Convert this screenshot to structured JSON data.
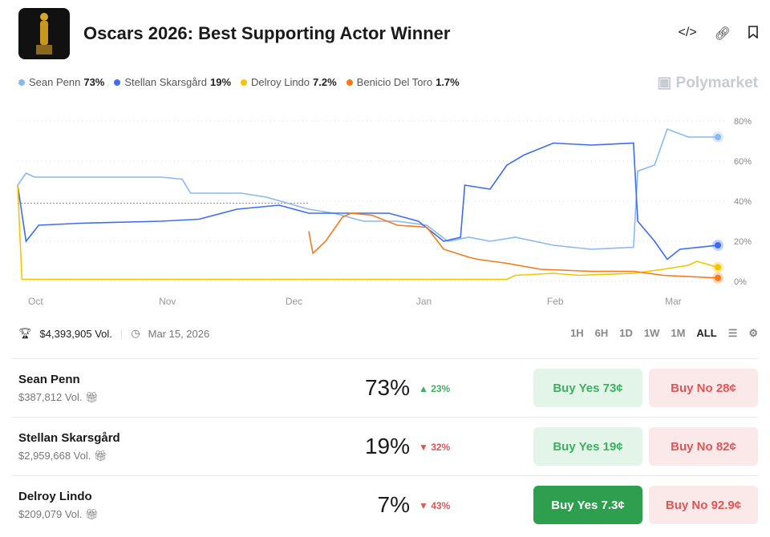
{
  "header": {
    "title": "Oscars 2026: Best Supporting Actor Winner",
    "icons": [
      "code-icon",
      "link-icon",
      "bookmark-icon"
    ]
  },
  "brand": "Polymarket",
  "legend": [
    {
      "name": "Sean Penn",
      "value": "73%",
      "color": "#8ab8f0"
    },
    {
      "name": "Stellan Skarsgård",
      "value": "19%",
      "color": "#3d6cf0"
    },
    {
      "name": "Delroy Lindo",
      "value": "7.2%",
      "color": "#f5c400"
    },
    {
      "name": "Benicio Del Toro",
      "value": "1.7%",
      "color": "#f57a1a"
    }
  ],
  "meta": {
    "volume": "$4,393,905 Vol.",
    "date": "Mar 15, 2026"
  },
  "ranges": [
    "1H",
    "6H",
    "1D",
    "1W",
    "1M",
    "ALL"
  ],
  "chart_data": {
    "type": "line",
    "x_ticks": [
      "Oct",
      "Nov",
      "Dec",
      "Jan",
      "Feb",
      "Mar"
    ],
    "y_ticks": [
      "0%",
      "20%",
      "40%",
      "60%",
      "80%"
    ],
    "ylim": [
      0,
      80
    ],
    "xlim": [
      "2025-09-27",
      "2026-03-12"
    ],
    "grid": true,
    "series": [
      {
        "name": "Sean Penn",
        "color": "#8ab8f0",
        "points": [
          [
            "2025-09-27",
            48
          ],
          [
            "2025-09-29",
            54
          ],
          [
            "2025-10-01",
            52
          ],
          [
            "2025-10-31",
            52
          ],
          [
            "2025-11-05",
            51
          ],
          [
            "2025-11-07",
            44
          ],
          [
            "2025-11-19",
            44
          ],
          [
            "2025-11-25",
            42
          ],
          [
            "2025-12-05",
            36
          ],
          [
            "2025-12-11",
            34
          ],
          [
            "2025-12-18",
            30
          ],
          [
            "2025-12-26",
            30
          ],
          [
            "2026-01-02",
            28
          ],
          [
            "2026-01-07",
            20
          ],
          [
            "2026-01-12",
            22
          ],
          [
            "2026-01-17",
            20
          ],
          [
            "2026-01-23",
            22
          ],
          [
            "2026-02-01",
            18
          ],
          [
            "2026-02-10",
            16
          ],
          [
            "2026-02-20",
            17
          ],
          [
            "2026-02-21",
            55
          ],
          [
            "2026-02-25",
            58
          ],
          [
            "2026-02-28",
            76
          ],
          [
            "2026-03-05",
            72
          ],
          [
            "2026-03-12",
            72
          ]
        ]
      },
      {
        "name": "Stellan Skarsgård",
        "color": "#3d6cf0",
        "points": [
          [
            "2025-09-27",
            48
          ],
          [
            "2025-09-29",
            20
          ],
          [
            "2025-10-02",
            28
          ],
          [
            "2025-10-12",
            29
          ],
          [
            "2025-10-31",
            30
          ],
          [
            "2025-11-09",
            31
          ],
          [
            "2025-11-18",
            36
          ],
          [
            "2025-11-28",
            38
          ],
          [
            "2025-12-05",
            34
          ],
          [
            "2025-12-15",
            34
          ],
          [
            "2025-12-24",
            34
          ],
          [
            "2025-12-31",
            30
          ],
          [
            "2026-01-06",
            20
          ],
          [
            "2026-01-10",
            22
          ],
          [
            "2026-01-11",
            48
          ],
          [
            "2026-01-17",
            46
          ],
          [
            "2026-01-21",
            58
          ],
          [
            "2026-01-25",
            63
          ],
          [
            "2026-02-01",
            69
          ],
          [
            "2026-02-10",
            68
          ],
          [
            "2026-02-20",
            69
          ],
          [
            "2026-02-21",
            30
          ],
          [
            "2026-02-25",
            20
          ],
          [
            "2026-02-28",
            11
          ],
          [
            "2026-03-03",
            16
          ],
          [
            "2026-03-12",
            18
          ]
        ]
      },
      {
        "name": "Delroy Lindo",
        "color": "#f5c400",
        "points": [
          [
            "2025-09-27",
            48
          ],
          [
            "2025-09-28",
            1
          ],
          [
            "2025-10-31",
            1
          ],
          [
            "2025-12-05",
            1
          ],
          [
            "2026-01-21",
            1
          ],
          [
            "2026-01-23",
            3
          ],
          [
            "2026-02-01",
            4
          ],
          [
            "2026-02-07",
            3
          ],
          [
            "2026-02-20",
            4
          ],
          [
            "2026-02-27",
            6
          ],
          [
            "2026-03-05",
            8
          ],
          [
            "2026-03-07",
            10
          ],
          [
            "2026-03-12",
            7
          ]
        ]
      },
      {
        "name": "Benicio Del Toro",
        "color": "#f57a1a",
        "points": [
          [
            "2025-12-05",
            25
          ],
          [
            "2025-12-06",
            14
          ],
          [
            "2025-12-09",
            20
          ],
          [
            "2025-12-13",
            32
          ],
          [
            "2025-12-15",
            34
          ],
          [
            "2025-12-20",
            33
          ],
          [
            "2025-12-26",
            28
          ],
          [
            "2026-01-02",
            27
          ],
          [
            "2026-01-06",
            16
          ],
          [
            "2026-01-12",
            12
          ],
          [
            "2026-01-14",
            11
          ],
          [
            "2026-01-21",
            9
          ],
          [
            "2026-01-29",
            6
          ],
          [
            "2026-02-10",
            5
          ],
          [
            "2026-02-20",
            5
          ],
          [
            "2026-02-27",
            3
          ],
          [
            "2026-03-12",
            1.7
          ]
        ]
      }
    ]
  },
  "outcomes": [
    {
      "name": "Sean Penn",
      "volume": "$387,812 Vol.",
      "pct": "73%",
      "change": "▲ 23%",
      "up": true,
      "yes": "Buy Yes",
      "yes_price": "73¢",
      "no": "Buy No",
      "no_price": "28¢"
    },
    {
      "name": "Stellan Skarsgård",
      "volume": "$2,959,668 Vol.",
      "pct": "19%",
      "change": "▼ 32%",
      "up": false,
      "yes": "Buy Yes",
      "yes_price": "19¢",
      "no": "Buy No",
      "no_price": "82¢"
    },
    {
      "name": "Delroy Lindo",
      "volume": "$209,079 Vol.",
      "pct": "7%",
      "change": "▼ 43%",
      "up": false,
      "yes": "Buy Yes",
      "yes_price": "7.3¢",
      "no": "Buy No",
      "no_price": "92.9¢"
    }
  ]
}
